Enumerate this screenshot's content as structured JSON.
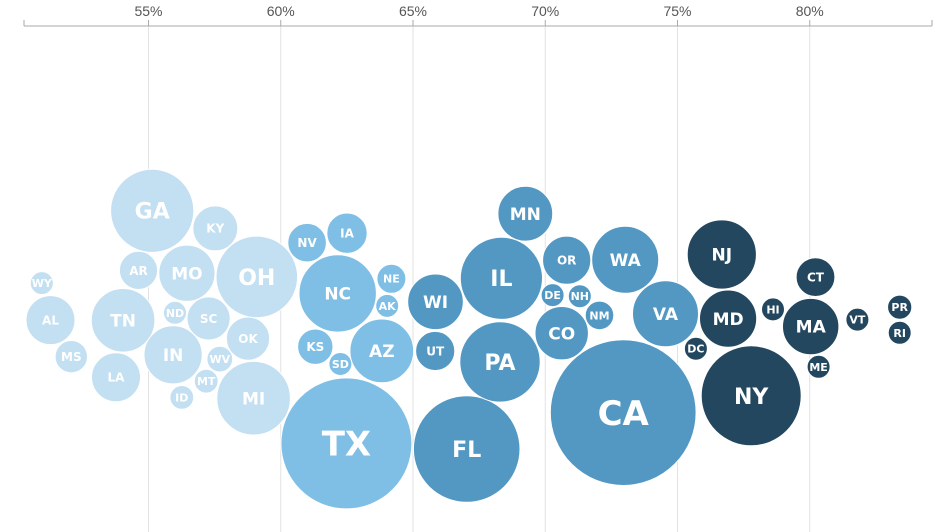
{
  "chart_data": {
    "type": "bubble-scatter",
    "title": "",
    "xlabel": "",
    "ylabel": "",
    "x_axis": {
      "position": "top",
      "ticks": [
        55,
        60,
        65,
        70,
        75,
        80
      ],
      "tick_labels": [
        "55%",
        "60%",
        "65%",
        "70%",
        "75%",
        "80%"
      ],
      "range": [
        50.3,
        84.5
      ],
      "grid": true
    },
    "color_scale": [
      {
        "max_x": 60,
        "color": "#c3dff2"
      },
      {
        "max_x": 65,
        "color": "#7fbfe6"
      },
      {
        "max_x": 75,
        "color": "#5298c3"
      },
      {
        "max_x": 100,
        "color": "#23475f"
      }
    ],
    "points": [
      {
        "label": "GA",
        "x": 55.2,
        "size": 2.7
      },
      {
        "label": "SC",
        "x": 57.4,
        "size": 0.73
      },
      {
        "label": "WV",
        "x": 58.2,
        "size": 0.26
      },
      {
        "label": "MS",
        "x": 52.0,
        "size": 0.41
      },
      {
        "label": "WY",
        "x": 51.0,
        "size": 0.12
      },
      {
        "label": "TN",
        "x": 54.5,
        "size": 1.58
      },
      {
        "label": "ID",
        "x": 56.2,
        "size": 0.22
      },
      {
        "label": "KY",
        "x": 57.7,
        "size": 0.79
      },
      {
        "label": "AL",
        "x": 51.2,
        "size": 0.94
      },
      {
        "label": "LA",
        "x": 53.8,
        "size": 0.94
      },
      {
        "label": "MO",
        "x": 56.5,
        "size": 1.23
      },
      {
        "label": "ND",
        "x": 56.1,
        "size": 0.17
      },
      {
        "label": "MT",
        "x": 57.0,
        "size": 0.22
      },
      {
        "label": "AR",
        "x": 54.7,
        "size": 0.57
      },
      {
        "label": "OK",
        "x": 58.0,
        "size": 0.73
      },
      {
        "label": "IN",
        "x": 56.2,
        "size": 1.32
      },
      {
        "label": "TX",
        "x": 62.2,
        "size": 6.7
      },
      {
        "label": "OH",
        "x": 58.8,
        "size": 2.6
      },
      {
        "label": "KS",
        "x": 61.4,
        "size": 0.49
      },
      {
        "label": "SD",
        "x": 62.8,
        "size": 0.2
      },
      {
        "label": "NE",
        "x": 64.0,
        "size": 0.33
      },
      {
        "label": "NC",
        "x": 62.8,
        "size": 2.34
      },
      {
        "label": "UT",
        "x": 65.8,
        "size": 0.6
      },
      {
        "label": "NV",
        "x": 60.8,
        "size": 0.58
      },
      {
        "label": "AZ",
        "x": 63.0,
        "size": 1.59
      },
      {
        "label": "MI",
        "x": 59.2,
        "size": 2.12
      },
      {
        "label": "IA",
        "x": 62.3,
        "size": 0.64
      },
      {
        "label": "AK",
        "x": 63.7,
        "size": 0.15
      },
      {
        "label": "WI",
        "x": 66.0,
        "size": 1.21
      },
      {
        "label": "FL",
        "x": 67.2,
        "size": 4.44
      },
      {
        "label": "CO",
        "x": 70.6,
        "size": 1.11
      },
      {
        "label": "MN",
        "x": 69.1,
        "size": 1.17
      },
      {
        "label": "CA",
        "x": 72.8,
        "size": 8.3
      },
      {
        "label": "NH",
        "x": 71.4,
        "size": 0.19
      },
      {
        "label": "NM",
        "x": 71.7,
        "size": 0.32
      },
      {
        "label": "PA",
        "x": 68.5,
        "size": 2.53
      },
      {
        "label": "OR",
        "x": 70.9,
        "size": 0.91
      },
      {
        "label": "WA",
        "x": 73.0,
        "size": 1.75
      },
      {
        "label": "IL",
        "x": 68.6,
        "size": 2.64
      },
      {
        "label": "DE",
        "x": 70.2,
        "size": 0.14
      },
      {
        "label": "NJ",
        "x": 76.7,
        "size": 1.87
      },
      {
        "label": "MD",
        "x": 76.7,
        "size": 1.28
      },
      {
        "label": "DC",
        "x": 75.6,
        "size": 0.1
      },
      {
        "label": "VA",
        "x": 74.7,
        "size": 1.7
      },
      {
        "label": "NY",
        "x": 77.7,
        "size": 3.91
      },
      {
        "label": "ME",
        "x": 80.3,
        "size": 0.15
      },
      {
        "label": "CT",
        "x": 80.2,
        "size": 0.59
      },
      {
        "label": "HI",
        "x": 78.7,
        "size": 0.18
      },
      {
        "label": "MA",
        "x": 80.0,
        "size": 1.24
      },
      {
        "label": "VT",
        "x": 81.8,
        "size": 0.1
      },
      {
        "label": "PR",
        "x": 83.4,
        "size": 0.23
      },
      {
        "label": "RI",
        "x": 83.4,
        "size": 0.11
      }
    ]
  }
}
